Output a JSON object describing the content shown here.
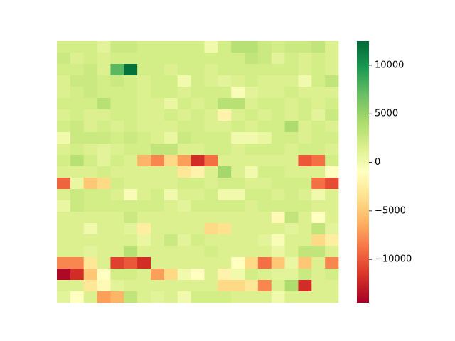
{
  "chart_data": {
    "type": "heatmap",
    "vlim": [
      -14450,
      12480
    ],
    "colormap": [
      "#a50026",
      "#d73027",
      "#f46d43",
      "#fdae61",
      "#fee08b",
      "#ffffbf",
      "#d9ef8b",
      "#a6d96a",
      "#66bd63",
      "#1a9850",
      "#006837"
    ],
    "colorbar_ticks": [
      {
        "value": 10000,
        "label": "10000"
      },
      {
        "value": 5000,
        "label": "5000"
      },
      {
        "value": 0,
        "label": "0"
      },
      {
        "value": -5000,
        "label": "−5000"
      },
      {
        "value": -10000,
        "label": "−10000"
      }
    ],
    "values": [
      [
        2000,
        2000,
        2000,
        1000,
        2500,
        2500,
        2000,
        2000,
        2000,
        2000,
        2000,
        0,
        2000,
        3500,
        3500,
        2500,
        2000,
        2500,
        2500,
        3000,
        1500
      ],
      [
        2500,
        1500,
        2000,
        1500,
        2000,
        2000,
        2000,
        2000,
        2000,
        2000,
        2000,
        2000,
        2000,
        2000,
        3000,
        2500,
        1000,
        2000,
        1500,
        2000,
        1500
      ],
      [
        2000,
        2000,
        2500,
        1500,
        7500,
        12000,
        2000,
        2000,
        1500,
        2000,
        2000,
        1500,
        2000,
        2000,
        2000,
        2000,
        2000,
        2000,
        1500,
        2000,
        1500
      ],
      [
        1500,
        2500,
        2500,
        2000,
        2500,
        2000,
        1500,
        2000,
        2000,
        0,
        2000,
        1500,
        1000,
        1500,
        2000,
        1500,
        1500,
        1500,
        0,
        2000,
        3000
      ],
      [
        1500,
        2000,
        2500,
        2000,
        2000,
        2000,
        1500,
        2000,
        2000,
        1500,
        2000,
        2000,
        2000,
        -500,
        1000,
        1500,
        1500,
        2000,
        1500,
        1500,
        1500
      ],
      [
        2000,
        2000,
        2000,
        3500,
        2000,
        2000,
        1500,
        1500,
        500,
        2000,
        1500,
        2000,
        3500,
        3500,
        1500,
        2000,
        2000,
        1500,
        2000,
        1500,
        2000
      ],
      [
        1500,
        2000,
        1500,
        1500,
        2000,
        2000,
        1500,
        1500,
        2000,
        1500,
        2000,
        1500,
        -2000,
        1500,
        2000,
        1500,
        2000,
        1500,
        2000,
        1000,
        2500
      ],
      [
        2000,
        2500,
        1500,
        2000,
        1500,
        2000,
        1500,
        1500,
        1500,
        2000,
        2000,
        1500,
        1500,
        2000,
        1500,
        2000,
        2000,
        4000,
        1500,
        2000,
        1500
      ],
      [
        0,
        2500,
        2500,
        2500,
        2000,
        2500,
        2000,
        1500,
        500,
        2500,
        2000,
        2000,
        2000,
        0,
        0,
        500,
        2000,
        2000,
        1500,
        2000,
        2000
      ],
      [
        1500,
        2000,
        1500,
        1000,
        1500,
        2000,
        2000,
        3000,
        3000,
        1500,
        1500,
        2000,
        2000,
        1500,
        2000,
        2000,
        2000,
        1500,
        2000,
        2000,
        1500
      ],
      [
        2000,
        3500,
        2000,
        1000,
        2000,
        1500,
        -6000,
        -8000,
        -4000,
        -7000,
        -12000,
        -9000,
        1500,
        1500,
        1500,
        1500,
        1500,
        1500,
        -10000,
        -9000,
        2000
      ],
      [
        1500,
        1500,
        1500,
        2000,
        1500,
        1500,
        1500,
        1500,
        1500,
        -3000,
        -2000,
        1500,
        4500,
        1500,
        0,
        2000,
        2000,
        1500,
        1500,
        1500,
        -1000
      ],
      [
        -9500,
        500,
        -5000,
        -4000,
        2000,
        1500,
        1500,
        1500,
        1500,
        2000,
        2000,
        1500,
        2000,
        2000,
        1500,
        1500,
        2000,
        2000,
        2000,
        -9000,
        -10500
      ],
      [
        1500,
        2500,
        2000,
        2000,
        1500,
        -500,
        1500,
        2000,
        0,
        1500,
        1500,
        2000,
        0,
        0,
        2000,
        2000,
        1500,
        2000,
        1500,
        0,
        1500
      ],
      [
        500,
        2500,
        2000,
        2000,
        2000,
        2000,
        2000,
        2000,
        1500,
        1000,
        2000,
        2000,
        2000,
        2000,
        1500,
        2000,
        2000,
        2000,
        2000,
        1500,
        1500
      ],
      [
        1500,
        1500,
        1500,
        1500,
        1500,
        2500,
        1500,
        1500,
        1500,
        1500,
        1500,
        1500,
        1500,
        1500,
        1500,
        1500,
        -1500,
        3000,
        1500,
        -1000,
        1500
      ],
      [
        1500,
        1500,
        0,
        1500,
        1500,
        1000,
        -2500,
        1500,
        1500,
        1500,
        1500,
        -4000,
        -3500,
        1500,
        1500,
        1500,
        1500,
        1000,
        1500,
        3000,
        1000
      ],
      [
        1500,
        1500,
        1500,
        1500,
        1500,
        1500,
        500,
        1500,
        2500,
        1000,
        2000,
        1500,
        1500,
        1500,
        1500,
        1000,
        -500,
        1500,
        1500,
        -4000,
        -2500
      ],
      [
        1500,
        1500,
        1000,
        1500,
        1500,
        3500,
        1500,
        1500,
        1500,
        1500,
        1500,
        2000,
        1500,
        1500,
        1500,
        1500,
        500,
        1500,
        3000,
        3000,
        1500
      ],
      [
        -8000,
        -8000,
        -3000,
        1500,
        -11000,
        -10000,
        -12000,
        1500,
        1500,
        1500,
        1500,
        1500,
        1500,
        -1000,
        -4000,
        -9000,
        -5000,
        500,
        -5000,
        1500,
        -8000
      ],
      [
        -14000,
        -12000,
        -5000,
        -1000,
        2000,
        2000,
        1500,
        -7000,
        -4000,
        0,
        -1000,
        1500,
        -2000,
        0,
        2000,
        1500,
        1000,
        1000,
        2500,
        1500,
        2000
      ],
      [
        1500,
        1500,
        -3000,
        -1500,
        1000,
        1500,
        1500,
        1500,
        1500,
        1500,
        1500,
        1500,
        -4000,
        -4000,
        -3000,
        -8000,
        1500,
        4000,
        -12000,
        1500,
        1500
      ],
      [
        1000,
        -1000,
        1500,
        -7000,
        -6000,
        3000,
        1500,
        1000,
        1500,
        0,
        2000,
        2000,
        2000,
        1500,
        1500,
        1500,
        0,
        1500,
        1500,
        1500,
        1500
      ]
    ]
  }
}
